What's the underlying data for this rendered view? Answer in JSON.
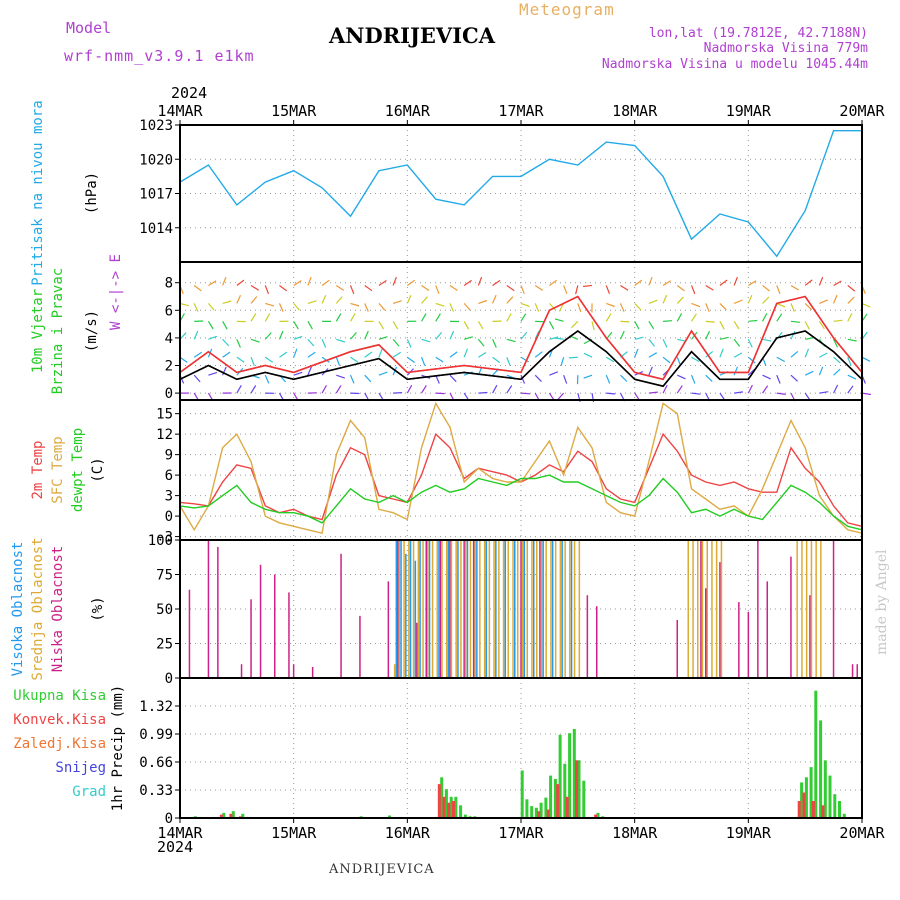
{
  "header": {
    "model_label": "Model",
    "model_name": "wrf-nmm_v3.9.1 e1km",
    "station": "ANDRIJEVICA",
    "meteogram": "Meteogram",
    "lonlat": "lon,lat (19.7812E, 42.7188N)",
    "elevation": "Nadmorska Visina 779m",
    "model_elevation": "Nadmorska Visina u modelu 1045.44m",
    "year_top": "2024",
    "year_bottom": "2024",
    "footer_station": "ANDRIJEVICA",
    "credit": "made by Angel"
  },
  "colors": {
    "pressure": "#22aae8",
    "wind_speed": "#000000",
    "wind_gust": "#ee3333",
    "temp_2m": "#ee4444",
    "temp_sfc": "#ddaa44",
    "dewpoint": "#22cc22",
    "cloud_high": "#2299ee",
    "cloud_mid": "#ddaa33",
    "cloud_low": "#cc2288",
    "precip_total": "#33cc33",
    "precip_conv": "#ee4444",
    "precip_frozen": "#ee7733",
    "snow": "#4444dd",
    "hail": "#33cccc",
    "grid": "#999999",
    "label_purple": "#b040d0"
  },
  "chart_data": [
    {
      "type": "line",
      "panel": "pressure",
      "ylabel": [
        "Pritisak na nivou mora",
        "(hPa)"
      ],
      "x_unit": "hours since 2024-03-14 00 UTC",
      "x_ticks": [
        "14MAR",
        "15MAR",
        "16MAR",
        "17MAR",
        "18MAR",
        "19MAR",
        "20MAR"
      ],
      "ylim": [
        1011,
        1023
      ],
      "yticks": [
        1014,
        1017,
        1020,
        1023
      ],
      "series": [
        {
          "key": "pressure",
          "x": [
            0,
            6,
            12,
            18,
            24,
            30,
            36,
            42,
            48,
            54,
            60,
            66,
            72,
            78,
            84,
            90,
            96,
            102,
            108,
            114,
            120,
            126,
            132,
            138,
            144
          ],
          "values": [
            1018,
            1019.5,
            1016,
            1018,
            1019,
            1017.5,
            1015,
            1019,
            1019.5,
            1016.5,
            1016,
            1018.5,
            1018.5,
            1020,
            1019.5,
            1021.5,
            1021.2,
            1018.5,
            1013,
            1015.2,
            1014.5,
            1011.5,
            1015.5,
            1022.5,
            1022.5
          ]
        }
      ],
      "grid": true
    },
    {
      "type": "line",
      "panel": "wind",
      "ylabel": [
        "10m Vjetar",
        "Brzina i Pravac",
        "(m/s)"
      ],
      "compass": "W <-|-> E",
      "ylim": [
        -0.5,
        9.5
      ],
      "yticks": [
        0,
        2,
        4,
        6,
        8
      ],
      "series": [
        {
          "key": "wind_speed",
          "x": [
            0,
            6,
            12,
            18,
            24,
            36,
            42,
            48,
            60,
            72,
            78,
            84,
            90,
            96,
            102,
            108,
            114,
            120,
            126,
            132,
            138,
            144
          ],
          "values": [
            1,
            2,
            1,
            1.5,
            1,
            2,
            2.5,
            1,
            1.5,
            1,
            3,
            4.5,
            3,
            1,
            0.5,
            3,
            1,
            1,
            4,
            4.5,
            3,
            1
          ]
        },
        {
          "key": "wind_gust",
          "x": [
            0,
            6,
            12,
            18,
            24,
            36,
            42,
            48,
            60,
            72,
            78,
            84,
            90,
            96,
            102,
            108,
            114,
            120,
            126,
            132,
            138,
            144
          ],
          "values": [
            1.5,
            3,
            1.5,
            2,
            1.5,
            3,
            3.5,
            1.5,
            2,
            1.5,
            6,
            7,
            4,
            1.5,
            1,
            4.5,
            1.5,
            1.5,
            6.5,
            7,
            4,
            1.5
          ]
        }
      ],
      "grid": true
    },
    {
      "type": "line",
      "panel": "temperature",
      "ylabel": [
        "2m Temp",
        "SFC Temp",
        "dewpt Temp",
        "(C)"
      ],
      "ylim": [
        -3.5,
        17
      ],
      "yticks": [
        -3,
        0,
        3,
        6,
        9,
        12,
        15
      ],
      "series": [
        {
          "key": "temp_2m",
          "x": [
            0,
            3,
            6,
            9,
            12,
            15,
            18,
            21,
            24,
            27,
            30,
            33,
            36,
            39,
            42,
            45,
            48,
            51,
            54,
            57,
            60,
            63,
            66,
            69,
            72,
            75,
            78,
            81,
            84,
            87,
            90,
            93,
            96,
            99,
            102,
            105,
            108,
            111,
            114,
            117,
            120,
            123,
            126,
            129,
            132,
            135,
            138,
            141,
            144
          ],
          "values": [
            2,
            1.8,
            1.5,
            5,
            7.5,
            7,
            1.5,
            0.5,
            1,
            0,
            -0.5,
            6,
            10,
            9,
            3,
            2.5,
            2,
            6,
            12,
            10,
            5.5,
            7,
            6.5,
            6,
            5,
            6,
            7.5,
            6.5,
            9.5,
            8,
            4,
            2.5,
            2,
            7,
            12,
            9.5,
            6,
            5,
            4.5,
            5,
            4,
            3.5,
            3.5,
            10,
            7,
            5,
            1.5,
            -1,
            -1.5
          ]
        },
        {
          "key": "temp_sfc",
          "x": [
            0,
            3,
            6,
            9,
            12,
            15,
            18,
            21,
            24,
            27,
            30,
            33,
            36,
            39,
            42,
            45,
            48,
            51,
            54,
            57,
            60,
            63,
            66,
            69,
            72,
            75,
            78,
            81,
            84,
            87,
            90,
            93,
            96,
            99,
            102,
            105,
            108,
            111,
            114,
            117,
            120,
            123,
            126,
            129,
            132,
            135,
            138,
            141,
            144
          ],
          "values": [
            1.5,
            -2,
            1.5,
            10,
            12,
            8,
            0,
            -1,
            -1.5,
            -2,
            -2.5,
            9,
            14,
            11.5,
            1,
            0.5,
            -0.5,
            10,
            16.5,
            13,
            5,
            7,
            5.5,
            5,
            5,
            8,
            11,
            6,
            13,
            10,
            2,
            0.5,
            0,
            8,
            16.5,
            15,
            4,
            2.5,
            1,
            1.5,
            0,
            4,
            9,
            14,
            10,
            3,
            0,
            -2,
            -2.5
          ]
        },
        {
          "key": "dewpoint",
          "x": [
            0,
            3,
            6,
            9,
            12,
            15,
            18,
            21,
            24,
            27,
            30,
            33,
            36,
            39,
            42,
            45,
            48,
            51,
            54,
            57,
            60,
            63,
            66,
            69,
            72,
            75,
            78,
            81,
            84,
            87,
            90,
            93,
            96,
            99,
            102,
            105,
            108,
            111,
            114,
            117,
            120,
            123,
            126,
            129,
            132,
            135,
            138,
            141,
            144
          ],
          "values": [
            1.5,
            1.2,
            1.5,
            3,
            4.5,
            2,
            1,
            0.5,
            0.5,
            0,
            -1,
            1.5,
            4,
            2.5,
            2,
            3,
            2,
            3.5,
            4.5,
            3.5,
            4,
            5.5,
            5,
            4.5,
            5.5,
            5.5,
            6,
            5,
            5,
            4,
            3,
            2,
            1.5,
            3,
            5.5,
            3.5,
            0.5,
            1,
            0,
            1,
            0,
            -0.5,
            2,
            4.5,
            3.5,
            2,
            0,
            -1.5,
            -2
          ]
        }
      ],
      "grid": true
    },
    {
      "type": "bar",
      "panel": "clouds",
      "ylabel": [
        "Visoka Oblacnost",
        "Srednja Oblacnost",
        "Niska Oblacnost",
        "(%)"
      ],
      "ylim": [
        0,
        100
      ],
      "yticks": [
        0,
        25,
        50,
        75,
        100
      ],
      "series": [
        {
          "key": "cloud_low",
          "x": [
            2,
            6,
            8,
            13,
            15,
            17,
            20,
            23,
            24,
            28,
            34,
            38,
            44,
            46,
            50,
            52,
            55,
            57,
            60,
            62,
            72,
            76,
            86,
            88,
            105,
            110,
            111,
            114,
            118,
            120,
            122,
            124,
            129,
            133,
            138,
            142,
            143
          ],
          "values": [
            64,
            100,
            95,
            10,
            57,
            82,
            75,
            62,
            10,
            8,
            90,
            45,
            70,
            100,
            40,
            100,
            100,
            100,
            100,
            100,
            100,
            100,
            60,
            52,
            42,
            100,
            65,
            84,
            55,
            48,
            100,
            70,
            88,
            60,
            100,
            10,
            10
          ]
        },
        {
          "key": "cloud_mid",
          "x": [
            45,
            46,
            47,
            48,
            49,
            50,
            51,
            52,
            53,
            54,
            55,
            56,
            57,
            58,
            59,
            60,
            61,
            62,
            63,
            64,
            65,
            66,
            67,
            68,
            69,
            70,
            71,
            72,
            73,
            74,
            75,
            76,
            77,
            78,
            79,
            80,
            81,
            82,
            83,
            84,
            107,
            108,
            109,
            110,
            111,
            112,
            113,
            114,
            130,
            131,
            132,
            133,
            134,
            135
          ],
          "values": [
            10,
            100,
            100,
            100,
            100,
            100,
            100,
            100,
            100,
            100,
            100,
            100,
            100,
            100,
            100,
            100,
            100,
            100,
            100,
            100,
            100,
            100,
            100,
            100,
            100,
            100,
            100,
            100,
            100,
            100,
            100,
            100,
            100,
            100,
            100,
            100,
            100,
            100,
            100,
            100,
            100,
            100,
            100,
            100,
            100,
            100,
            100,
            100,
            100,
            100,
            100,
            100,
            100,
            100
          ]
        },
        {
          "key": "cloud_high",
          "x": [
            46,
            47,
            48,
            49,
            50,
            51,
            53,
            55,
            57,
            59,
            61,
            63,
            65,
            67,
            69,
            71,
            73,
            75,
            77,
            79,
            81,
            83
          ],
          "values": [
            100,
            100,
            90,
            100,
            85,
            100,
            100,
            100,
            100,
            100,
            100,
            100,
            100,
            100,
            100,
            100,
            100,
            100,
            100,
            100,
            100,
            100
          ]
        }
      ],
      "grid": true
    },
    {
      "type": "bar",
      "panel": "precip",
      "ylabel": [
        "1hr Precip (mm)"
      ],
      "legend": [
        "Ukupna Kisa",
        "Konvek.Kisa",
        "Zaledj.Kisa",
        "Snijeg",
        "Grad"
      ],
      "ylim": [
        0,
        1.65
      ],
      "yticks": [
        0,
        0.33,
        0.66,
        0.99,
        1.32
      ],
      "series": [
        {
          "key": "precip_total",
          "x": [
            3,
            9,
            11,
            13,
            38,
            44,
            55,
            56,
            57,
            58,
            59,
            60,
            61,
            62,
            72,
            73,
            74,
            75,
            76,
            77,
            78,
            79,
            80,
            81,
            82,
            83,
            84,
            85,
            88,
            89,
            131,
            132,
            133,
            134,
            135,
            136,
            137,
            138,
            139,
            140
          ],
          "values": [
            0.02,
            0.06,
            0.08,
            0.05,
            0.02,
            0.03,
            0.48,
            0.34,
            0.25,
            0.25,
            0.15,
            0.04,
            0.02,
            0.02,
            0.56,
            0.22,
            0.14,
            0.12,
            0.18,
            0.24,
            0.5,
            0.46,
            0.98,
            0.64,
            1.0,
            1.05,
            0.68,
            0.44,
            0.06,
            0.02,
            0.42,
            0.48,
            0.6,
            1.5,
            1.15,
            0.68,
            0.5,
            0.28,
            0.2,
            0.05
          ]
        },
        {
          "key": "precip_conv",
          "x": [
            9,
            11,
            13,
            55,
            56,
            57,
            58,
            76,
            78,
            80,
            82,
            84,
            88,
            131,
            132,
            134,
            136
          ],
          "values": [
            0.04,
            0.05,
            0.02,
            0.4,
            0.25,
            0.18,
            0.2,
            0.08,
            0.1,
            0.4,
            0.25,
            0.68,
            0.04,
            0.2,
            0.3,
            0.2,
            0.15
          ]
        },
        {
          "key": "precip_frozen",
          "x": [],
          "values": []
        },
        {
          "key": "snow",
          "x": [],
          "values": []
        },
        {
          "key": "hail",
          "x": [],
          "values": []
        }
      ],
      "grid": true
    }
  ]
}
